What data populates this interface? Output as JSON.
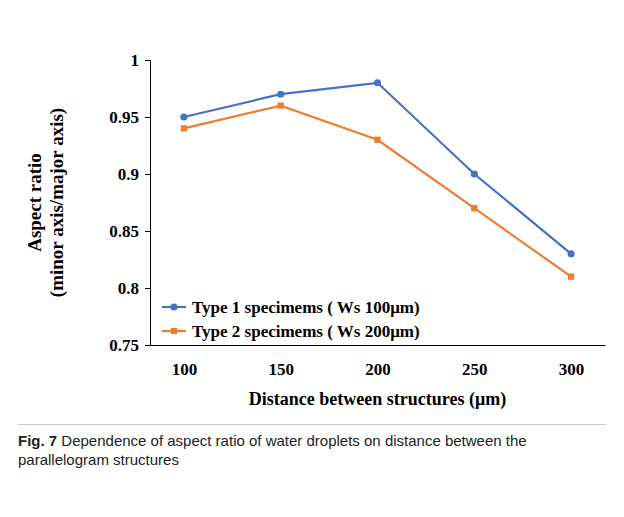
{
  "chart_data": {
    "type": "line",
    "x_label": "Distance between structures (μm)",
    "y_label": "Aspect ratio (minor axis/major axis)",
    "figure_label": "Fig. 7",
    "caption": "Dependence of aspect ratio of water droplets on distance between the parallelogram structures",
    "categories": [
      "100",
      "150",
      "200",
      "250",
      "300"
    ],
    "series": [
      {
        "name": "Type 1 specimems ( Ws 100μm)",
        "color": "#4472c4",
        "marker": "circle",
        "values": [
          0.95,
          0.97,
          0.98,
          0.9,
          0.83
        ]
      },
      {
        "name": "Type 2 specimems ( Ws 200μm)",
        "color": "#ed7d31",
        "marker": "square",
        "values": [
          0.94,
          0.96,
          0.93,
          0.87,
          0.81
        ]
      }
    ],
    "ylim": [
      0.75,
      1
    ],
    "yticks": [
      0.75,
      0.8,
      0.85,
      0.9,
      0.95,
      1
    ],
    "grid": false,
    "legend": "lower left"
  }
}
